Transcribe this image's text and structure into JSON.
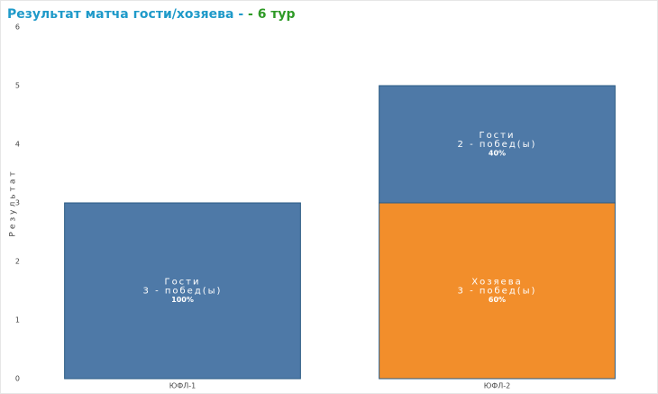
{
  "chart_data": {
    "type": "stacked-bar",
    "title": "Результат матча гости/хозяева - ",
    "title_suffix": " - 6 тур",
    "y_label": "Результат",
    "categories": [
      "ЮФЛ-1",
      "ЮФЛ-2"
    ],
    "series": [
      {
        "name": "Хозяева",
        "color": "#f28e2b",
        "values": [
          null,
          3
        ],
        "value_labels": [
          null,
          "3 - побед(ы)"
        ],
        "percent_labels": [
          null,
          "60%"
        ]
      },
      {
        "name": "Гости",
        "color": "#4e79a7",
        "values": [
          3,
          2
        ],
        "value_labels": [
          "3 - побед(ы)",
          "2 - побед(ы)"
        ],
        "percent_labels": [
          "100%",
          "40%"
        ]
      }
    ],
    "ylim": [
      0,
      6
    ],
    "yticks": [
      0,
      1,
      2,
      3,
      4,
      5,
      6
    ],
    "grid": false
  }
}
